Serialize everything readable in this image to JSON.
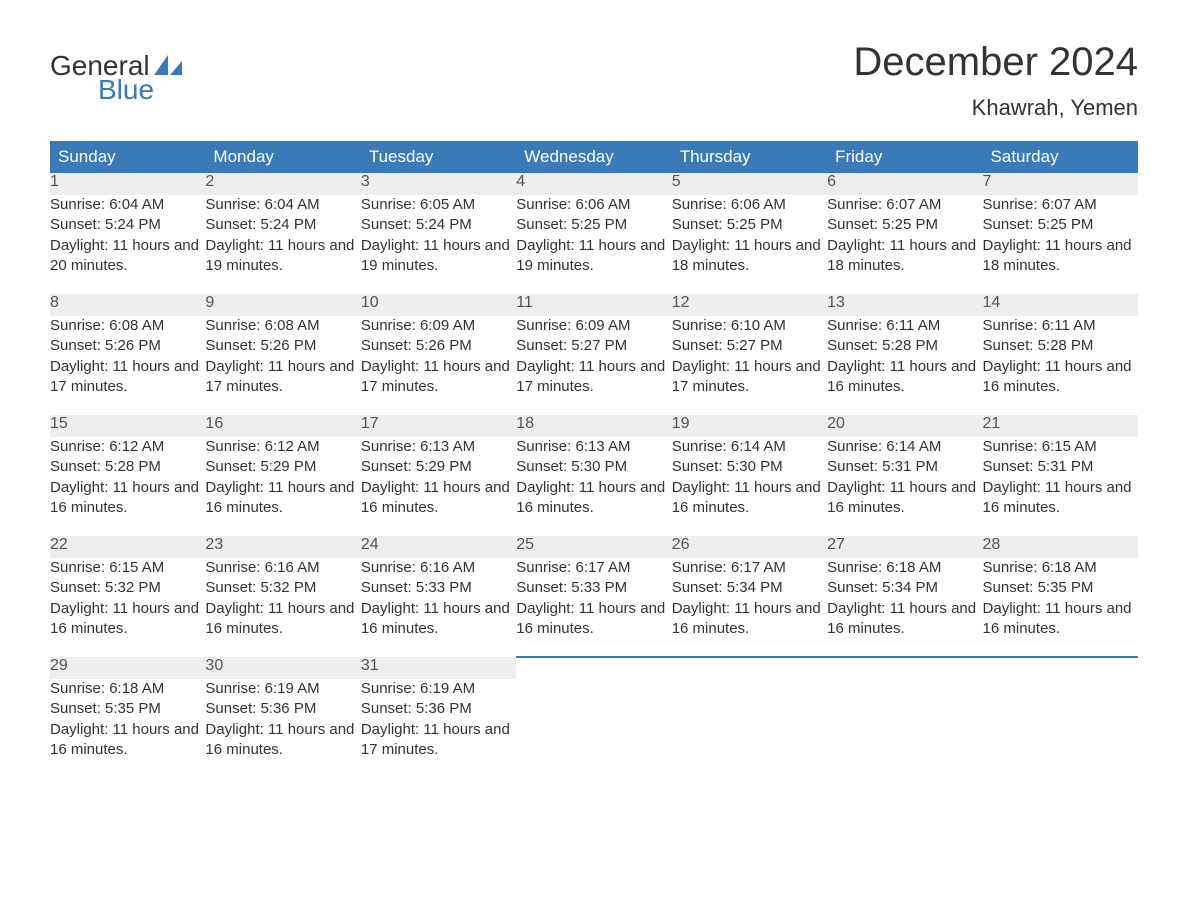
{
  "logo": {
    "text1": "General",
    "text2": "Blue",
    "sail_color": "#3b7ab8"
  },
  "title": "December 2024",
  "location": "Khawrah, Yemen",
  "header_bg": "#3b7ab8",
  "header_fg": "#ffffff",
  "daynum_bg": "#ededed",
  "border_color": "#3b7ab8",
  "columns": [
    "Sunday",
    "Monday",
    "Tuesday",
    "Wednesday",
    "Thursday",
    "Friday",
    "Saturday"
  ],
  "weeks": [
    [
      {
        "n": "1",
        "sr": "6:04 AM",
        "ss": "5:24 PM",
        "dl": "11 hours and 20 minutes."
      },
      {
        "n": "2",
        "sr": "6:04 AM",
        "ss": "5:24 PM",
        "dl": "11 hours and 19 minutes."
      },
      {
        "n": "3",
        "sr": "6:05 AM",
        "ss": "5:24 PM",
        "dl": "11 hours and 19 minutes."
      },
      {
        "n": "4",
        "sr": "6:06 AM",
        "ss": "5:25 PM",
        "dl": "11 hours and 19 minutes."
      },
      {
        "n": "5",
        "sr": "6:06 AM",
        "ss": "5:25 PM",
        "dl": "11 hours and 18 minutes."
      },
      {
        "n": "6",
        "sr": "6:07 AM",
        "ss": "5:25 PM",
        "dl": "11 hours and 18 minutes."
      },
      {
        "n": "7",
        "sr": "6:07 AM",
        "ss": "5:25 PM",
        "dl": "11 hours and 18 minutes."
      }
    ],
    [
      {
        "n": "8",
        "sr": "6:08 AM",
        "ss": "5:26 PM",
        "dl": "11 hours and 17 minutes."
      },
      {
        "n": "9",
        "sr": "6:08 AM",
        "ss": "5:26 PM",
        "dl": "11 hours and 17 minutes."
      },
      {
        "n": "10",
        "sr": "6:09 AM",
        "ss": "5:26 PM",
        "dl": "11 hours and 17 minutes."
      },
      {
        "n": "11",
        "sr": "6:09 AM",
        "ss": "5:27 PM",
        "dl": "11 hours and 17 minutes."
      },
      {
        "n": "12",
        "sr": "6:10 AM",
        "ss": "5:27 PM",
        "dl": "11 hours and 17 minutes."
      },
      {
        "n": "13",
        "sr": "6:11 AM",
        "ss": "5:28 PM",
        "dl": "11 hours and 16 minutes."
      },
      {
        "n": "14",
        "sr": "6:11 AM",
        "ss": "5:28 PM",
        "dl": "11 hours and 16 minutes."
      }
    ],
    [
      {
        "n": "15",
        "sr": "6:12 AM",
        "ss": "5:28 PM",
        "dl": "11 hours and 16 minutes."
      },
      {
        "n": "16",
        "sr": "6:12 AM",
        "ss": "5:29 PM",
        "dl": "11 hours and 16 minutes."
      },
      {
        "n": "17",
        "sr": "6:13 AM",
        "ss": "5:29 PM",
        "dl": "11 hours and 16 minutes."
      },
      {
        "n": "18",
        "sr": "6:13 AM",
        "ss": "5:30 PM",
        "dl": "11 hours and 16 minutes."
      },
      {
        "n": "19",
        "sr": "6:14 AM",
        "ss": "5:30 PM",
        "dl": "11 hours and 16 minutes."
      },
      {
        "n": "20",
        "sr": "6:14 AM",
        "ss": "5:31 PM",
        "dl": "11 hours and 16 minutes."
      },
      {
        "n": "21",
        "sr": "6:15 AM",
        "ss": "5:31 PM",
        "dl": "11 hours and 16 minutes."
      }
    ],
    [
      {
        "n": "22",
        "sr": "6:15 AM",
        "ss": "5:32 PM",
        "dl": "11 hours and 16 minutes."
      },
      {
        "n": "23",
        "sr": "6:16 AM",
        "ss": "5:32 PM",
        "dl": "11 hours and 16 minutes."
      },
      {
        "n": "24",
        "sr": "6:16 AM",
        "ss": "5:33 PM",
        "dl": "11 hours and 16 minutes."
      },
      {
        "n": "25",
        "sr": "6:17 AM",
        "ss": "5:33 PM",
        "dl": "11 hours and 16 minutes."
      },
      {
        "n": "26",
        "sr": "6:17 AM",
        "ss": "5:34 PM",
        "dl": "11 hours and 16 minutes."
      },
      {
        "n": "27",
        "sr": "6:18 AM",
        "ss": "5:34 PM",
        "dl": "11 hours and 16 minutes."
      },
      {
        "n": "28",
        "sr": "6:18 AM",
        "ss": "5:35 PM",
        "dl": "11 hours and 16 minutes."
      }
    ],
    [
      {
        "n": "29",
        "sr": "6:18 AM",
        "ss": "5:35 PM",
        "dl": "11 hours and 16 minutes."
      },
      {
        "n": "30",
        "sr": "6:19 AM",
        "ss": "5:36 PM",
        "dl": "11 hours and 16 minutes."
      },
      {
        "n": "31",
        "sr": "6:19 AM",
        "ss": "5:36 PM",
        "dl": "11 hours and 17 minutes."
      },
      null,
      null,
      null,
      null
    ]
  ],
  "labels": {
    "sunrise": "Sunrise:",
    "sunset": "Sunset:",
    "daylight": "Daylight:"
  }
}
